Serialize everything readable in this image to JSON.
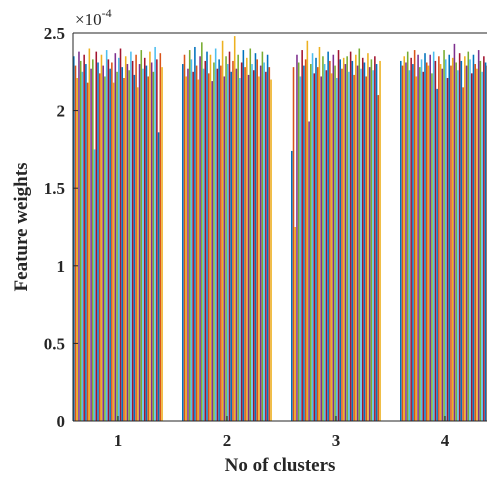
{
  "chart_data": {
    "type": "bar",
    "xlabel": "No of clusters",
    "ylabel": "Feature weights",
    "y_exponent_label": "×10",
    "y_exponent_power": "-4",
    "categories": [
      "1",
      "2",
      "3",
      "4"
    ],
    "ylim": [
      0,
      2.5
    ],
    "yticks": [
      "0",
      "0.5",
      "1",
      "1.5",
      "2",
      "2.5"
    ],
    "grid": false,
    "legend": "none",
    "series_per_category": 52,
    "value_range": [
      1.25,
      2.48
    ],
    "typical_value": 2.3,
    "colors": [
      "#0072BD",
      "#D95319",
      "#EDB120",
      "#7E2F8E",
      "#77AC30",
      "#4DBEEE",
      "#A2142F"
    ],
    "values": [
      [
        2.35,
        2.29,
        2.21,
        2.38,
        2.32,
        2.25,
        2.36,
        2.3,
        2.18,
        2.4,
        2.27,
        2.33,
        1.75,
        2.38,
        2.31,
        2.24,
        2.36,
        2.29,
        2.22,
        2.39,
        2.33,
        2.27,
        2.31,
        2.18,
        2.37,
        2.25,
        2.34,
        2.4,
        2.28,
        2.21,
        2.35,
        2.3,
        2.26,
        2.38,
        2.32,
        2.23,
        2.36,
        2.15,
        2.3,
        2.39,
        2.27,
        2.34,
        2.29,
        2.22,
        2.38,
        2.31,
        2.25,
        2.41,
        2.33,
        1.86,
        2.37,
        2.28
      ],
      [
        2.3,
        2.36,
        2.22,
        2.27,
        2.39,
        2.33,
        2.25,
        2.41,
        2.29,
        2.2,
        2.35,
        2.44,
        2.27,
        2.32,
        2.38,
        2.24,
        2.36,
        2.19,
        2.31,
        2.4,
        2.27,
        2.33,
        2.29,
        2.45,
        2.22,
        2.35,
        2.3,
        2.38,
        2.25,
        2.32,
        2.48,
        2.27,
        2.36,
        2.21,
        2.31,
        2.39,
        2.28,
        2.34,
        2.23,
        2.4,
        2.3,
        2.26,
        2.37,
        2.33,
        2.22,
        2.29,
        2.38,
        2.31,
        2.25,
        2.36,
        2.28,
        2.2
      ],
      [
        1.74,
        2.28,
        1.25,
        2.36,
        2.31,
        2.22,
        2.39,
        2.29,
        2.33,
        2.45,
        1.93,
        2.3,
        2.37,
        2.24,
        2.34,
        2.28,
        2.41,
        2.22,
        2.35,
        2.3,
        2.26,
        2.38,
        2.32,
        2.24,
        2.36,
        2.29,
        2.21,
        2.39,
        2.33,
        2.27,
        2.34,
        2.3,
        2.35,
        2.25,
        2.38,
        2.32,
        2.23,
        2.36,
        2.29,
        2.4,
        2.27,
        2.34,
        2.31,
        2.22,
        2.37,
        2.28,
        2.33,
        2.26,
        2.35,
        2.3,
        2.1,
        2.32
      ],
      [
        2.32,
        2.29,
        2.35,
        2.31,
        2.38,
        2.26,
        2.34,
        2.3,
        2.39,
        2.22,
        2.36,
        2.28,
        2.33,
        2.25,
        2.37,
        2.31,
        2.29,
        2.36,
        2.24,
        2.38,
        2.32,
        2.14,
        2.35,
        2.3,
        2.27,
        2.39,
        2.33,
        2.21,
        2.36,
        2.29,
        2.34,
        2.43,
        2.31,
        2.26,
        2.37,
        2.32,
        2.15,
        2.35,
        2.29,
        2.38,
        2.33,
        2.24,
        2.36,
        2.3,
        2.27,
        2.39,
        2.32,
        2.25,
        2.35,
        2.31,
        2.29,
        2.37
      ]
    ]
  }
}
